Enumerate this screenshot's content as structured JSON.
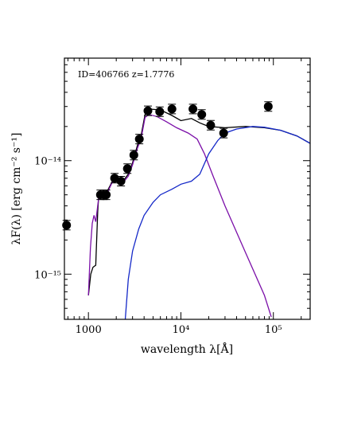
{
  "chart_data": {
    "type": "scatter",
    "annotation": "ID=406766  z=1.7776",
    "xlabel": "wavelength λ[Å]",
    "ylabel": "λF(λ) [erg cm⁻² s⁻¹]",
    "xscale": "log",
    "yscale": "log",
    "xlim": [
      550,
      250000
    ],
    "ylim": [
      4e-16,
      8e-14
    ],
    "x_ticks": [
      {
        "value": 1000,
        "label": "1000"
      },
      {
        "value": 10000,
        "label": "10⁴"
      },
      {
        "value": 100000,
        "label": "10⁵"
      }
    ],
    "y_ticks": [
      {
        "value": 1e-15,
        "label": "10⁻¹⁵"
      },
      {
        "value": 1e-14,
        "label": "10⁻¹⁴"
      }
    ],
    "points": [
      {
        "x": 580,
        "y": 2.7e-15
      },
      {
        "x": 1350,
        "y": 5e-15
      },
      {
        "x": 1460,
        "y": 5e-15
      },
      {
        "x": 1560,
        "y": 5e-15
      },
      {
        "x": 1920,
        "y": 7e-15
      },
      {
        "x": 2250,
        "y": 6.6e-15
      },
      {
        "x": 2640,
        "y": 8.5e-15
      },
      {
        "x": 3100,
        "y": 1.12e-14
      },
      {
        "x": 3550,
        "y": 1.55e-14
      },
      {
        "x": 4400,
        "y": 2.75e-14
      },
      {
        "x": 5900,
        "y": 2.7e-14
      },
      {
        "x": 8000,
        "y": 2.85e-14
      },
      {
        "x": 13500,
        "y": 2.85e-14
      },
      {
        "x": 16800,
        "y": 2.55e-14
      },
      {
        "x": 21000,
        "y": 2.05e-14
      },
      {
        "x": 29000,
        "y": 1.75e-14
      },
      {
        "x": 88000,
        "y": 3e-14
      }
    ],
    "series": [
      {
        "color": "#000000",
        "x": [
          1000,
          1060,
          1120,
          1200,
          1210,
          1260,
          1300,
          1400,
          1600,
          1800,
          2000,
          2300,
          2700,
          3000,
          3400,
          3700,
          4100,
          4500,
          6000,
          8000,
          10000,
          13000,
          16000,
          20000,
          30000,
          50000,
          80000,
          120000,
          180000,
          250000
        ],
        "y": [
          6.5e-16,
          1e-15,
          1.15e-15,
          1.2e-15,
          1.45e-15,
          3.6e-15,
          5.2e-15,
          5e-15,
          5.4e-15,
          6.5e-15,
          6.9e-15,
          6.4e-15,
          7.6e-15,
          9.6e-15,
          1.38e-14,
          1.65e-14,
          2.55e-14,
          2.85e-14,
          2.8e-14,
          2.5e-14,
          2.25e-14,
          2.35e-14,
          2.15e-14,
          2e-14,
          1.95e-14,
          2e-14,
          1.95e-14,
          1.85e-14,
          1.65e-14,
          1.42e-14
        ]
      },
      {
        "color": "#7B0FA8",
        "x": [
          1000,
          1050,
          1100,
          1150,
          1200,
          1300,
          1400,
          1600,
          1800,
          2000,
          2300,
          2700,
          3000,
          3400,
          3700,
          4100,
          4500,
          5500,
          7000,
          9000,
          12000,
          15000,
          18000,
          22000,
          30000,
          50000,
          80000,
          95000
        ],
        "y": [
          6.5e-16,
          1.7e-15,
          2.8e-15,
          3.3e-15,
          2.9e-15,
          4.9e-15,
          5.2e-15,
          5.2e-15,
          6.4e-15,
          6.8e-15,
          6.2e-15,
          7.3e-15,
          9.2e-15,
          1.3e-14,
          1.55e-14,
          2.4e-14,
          2.55e-14,
          2.45e-14,
          2.2e-14,
          1.95e-14,
          1.75e-14,
          1.55e-14,
          1.15e-14,
          7.5e-15,
          4e-15,
          1.55e-15,
          6.5e-16,
          4.2e-16
        ]
      },
      {
        "color": "#1428C8",
        "x": [
          2500,
          2700,
          3000,
          3500,
          4000,
          5000,
          6000,
          8000,
          10000,
          13000,
          16000,
          20000,
          25000,
          30000,
          40000,
          60000,
          80000,
          120000,
          180000,
          250000
        ],
        "y": [
          4e-16,
          9e-16,
          1.6e-15,
          2.5e-15,
          3.3e-15,
          4.3e-15,
          5e-15,
          5.6e-15,
          6.2e-15,
          6.6e-15,
          7.6e-15,
          1.15e-14,
          1.5e-14,
          1.75e-14,
          1.9e-14,
          2e-14,
          1.97e-14,
          1.85e-14,
          1.65e-14,
          1.42e-14
        ]
      }
    ],
    "grid": false,
    "legend": "none"
  }
}
